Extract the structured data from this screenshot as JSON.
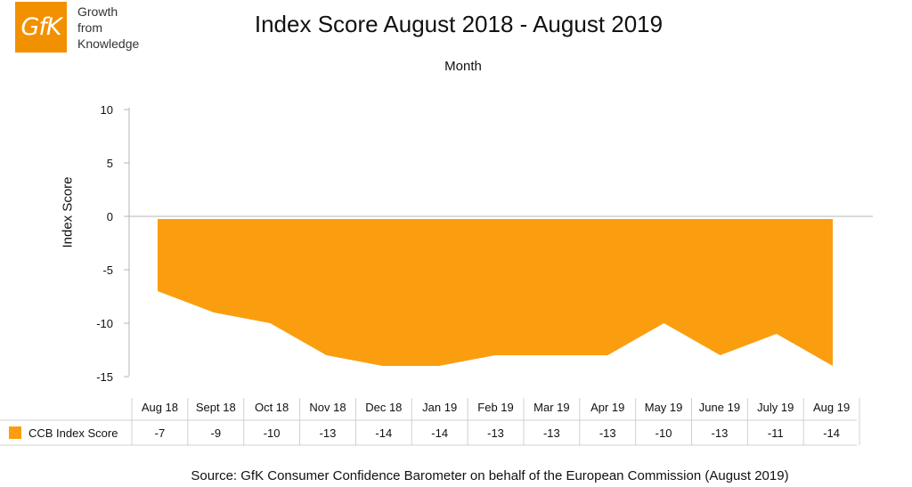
{
  "logo": {
    "mark": "GfK",
    "tagline": [
      "Growth",
      "from",
      "Knowledge"
    ]
  },
  "colors": {
    "accent": "#f29100",
    "area": "#fa9e0f",
    "axis": "#b5b5b5"
  },
  "chart_data": {
    "type": "area",
    "title": "Index Score August 2018 - August 2019",
    "top_label": "Month",
    "xlabel": "",
    "ylabel": "Index Score",
    "categories": [
      "Aug 18",
      "Sept 18",
      "Oct 18",
      "Nov 18",
      "Dec 18",
      "Jan 19",
      "Feb 19",
      "Mar 19",
      "Apr 19",
      "May 19",
      "June 19",
      "July 19",
      "Aug 19"
    ],
    "series": [
      {
        "name": "CCB Index Score",
        "values": [
          -7,
          -9,
          -10,
          -13,
          -14,
          -14,
          -13,
          -13,
          -13,
          -10,
          -13,
          -11,
          -14
        ]
      }
    ],
    "yticks": [
      10,
      5,
      0,
      -5,
      -10,
      -15
    ],
    "ylim": [
      -15,
      10
    ],
    "grid": false,
    "legend": "data-table-below"
  },
  "source": "Source: GfK Consumer Confidence Barometer on behalf of the European Commission (August 2019)"
}
